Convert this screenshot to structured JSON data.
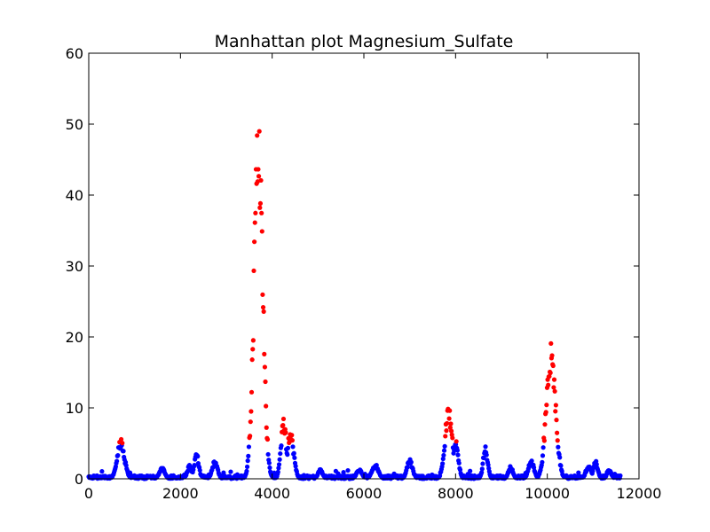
{
  "chart_data": {
    "type": "scatter",
    "title": "Manhattan plot Magnesium_Sulfate",
    "xlabel": "",
    "ylabel": "",
    "xlim": [
      0,
      12000
    ],
    "ylim": [
      0,
      60
    ],
    "x_ticks": [
      0,
      2000,
      4000,
      6000,
      8000,
      10000,
      12000
    ],
    "y_ticks": [
      0,
      10,
      20,
      30,
      40,
      50,
      60
    ],
    "x_tick_labels": [
      "0",
      "2000",
      "4000",
      "6000",
      "8000",
      "10000",
      "12000"
    ],
    "y_tick_labels": [
      "0",
      "10",
      "20",
      "30",
      "40",
      "50",
      "60"
    ],
    "grid": false,
    "significance_threshold": 5,
    "colors": {
      "below_threshold": "#0000ff",
      "above_threshold": "#ff0000"
    },
    "data_extent": [
      0,
      11600
    ],
    "peaks": [
      {
        "center": 700,
        "width": 80,
        "height": 5.6
      },
      {
        "center": 1600,
        "width": 60,
        "height": 1.6
      },
      {
        "center": 2200,
        "width": 50,
        "height": 2.0
      },
      {
        "center": 2350,
        "width": 50,
        "height": 3.8
      },
      {
        "center": 2750,
        "width": 60,
        "height": 2.6
      },
      {
        "center": 3700,
        "width": 95,
        "height": 51.5
      },
      {
        "center": 4250,
        "width": 60,
        "height": 8.8
      },
      {
        "center": 4400,
        "width": 70,
        "height": 7.0
      },
      {
        "center": 5050,
        "width": 50,
        "height": 1.4
      },
      {
        "center": 5900,
        "width": 60,
        "height": 1.4
      },
      {
        "center": 6250,
        "width": 70,
        "height": 2.1
      },
      {
        "center": 7000,
        "width": 60,
        "height": 2.8
      },
      {
        "center": 7850,
        "width": 80,
        "height": 10.4
      },
      {
        "center": 8000,
        "width": 60,
        "height": 5.5
      },
      {
        "center": 8650,
        "width": 50,
        "height": 4.6
      },
      {
        "center": 9200,
        "width": 50,
        "height": 1.8
      },
      {
        "center": 9650,
        "width": 60,
        "height": 2.7
      },
      {
        "center": 10080,
        "width": 100,
        "height": 19.5
      },
      {
        "center": 10900,
        "width": 60,
        "height": 1.9
      },
      {
        "center": 11050,
        "width": 50,
        "height": 2.6
      },
      {
        "center": 11350,
        "width": 50,
        "height": 1.3
      }
    ]
  }
}
